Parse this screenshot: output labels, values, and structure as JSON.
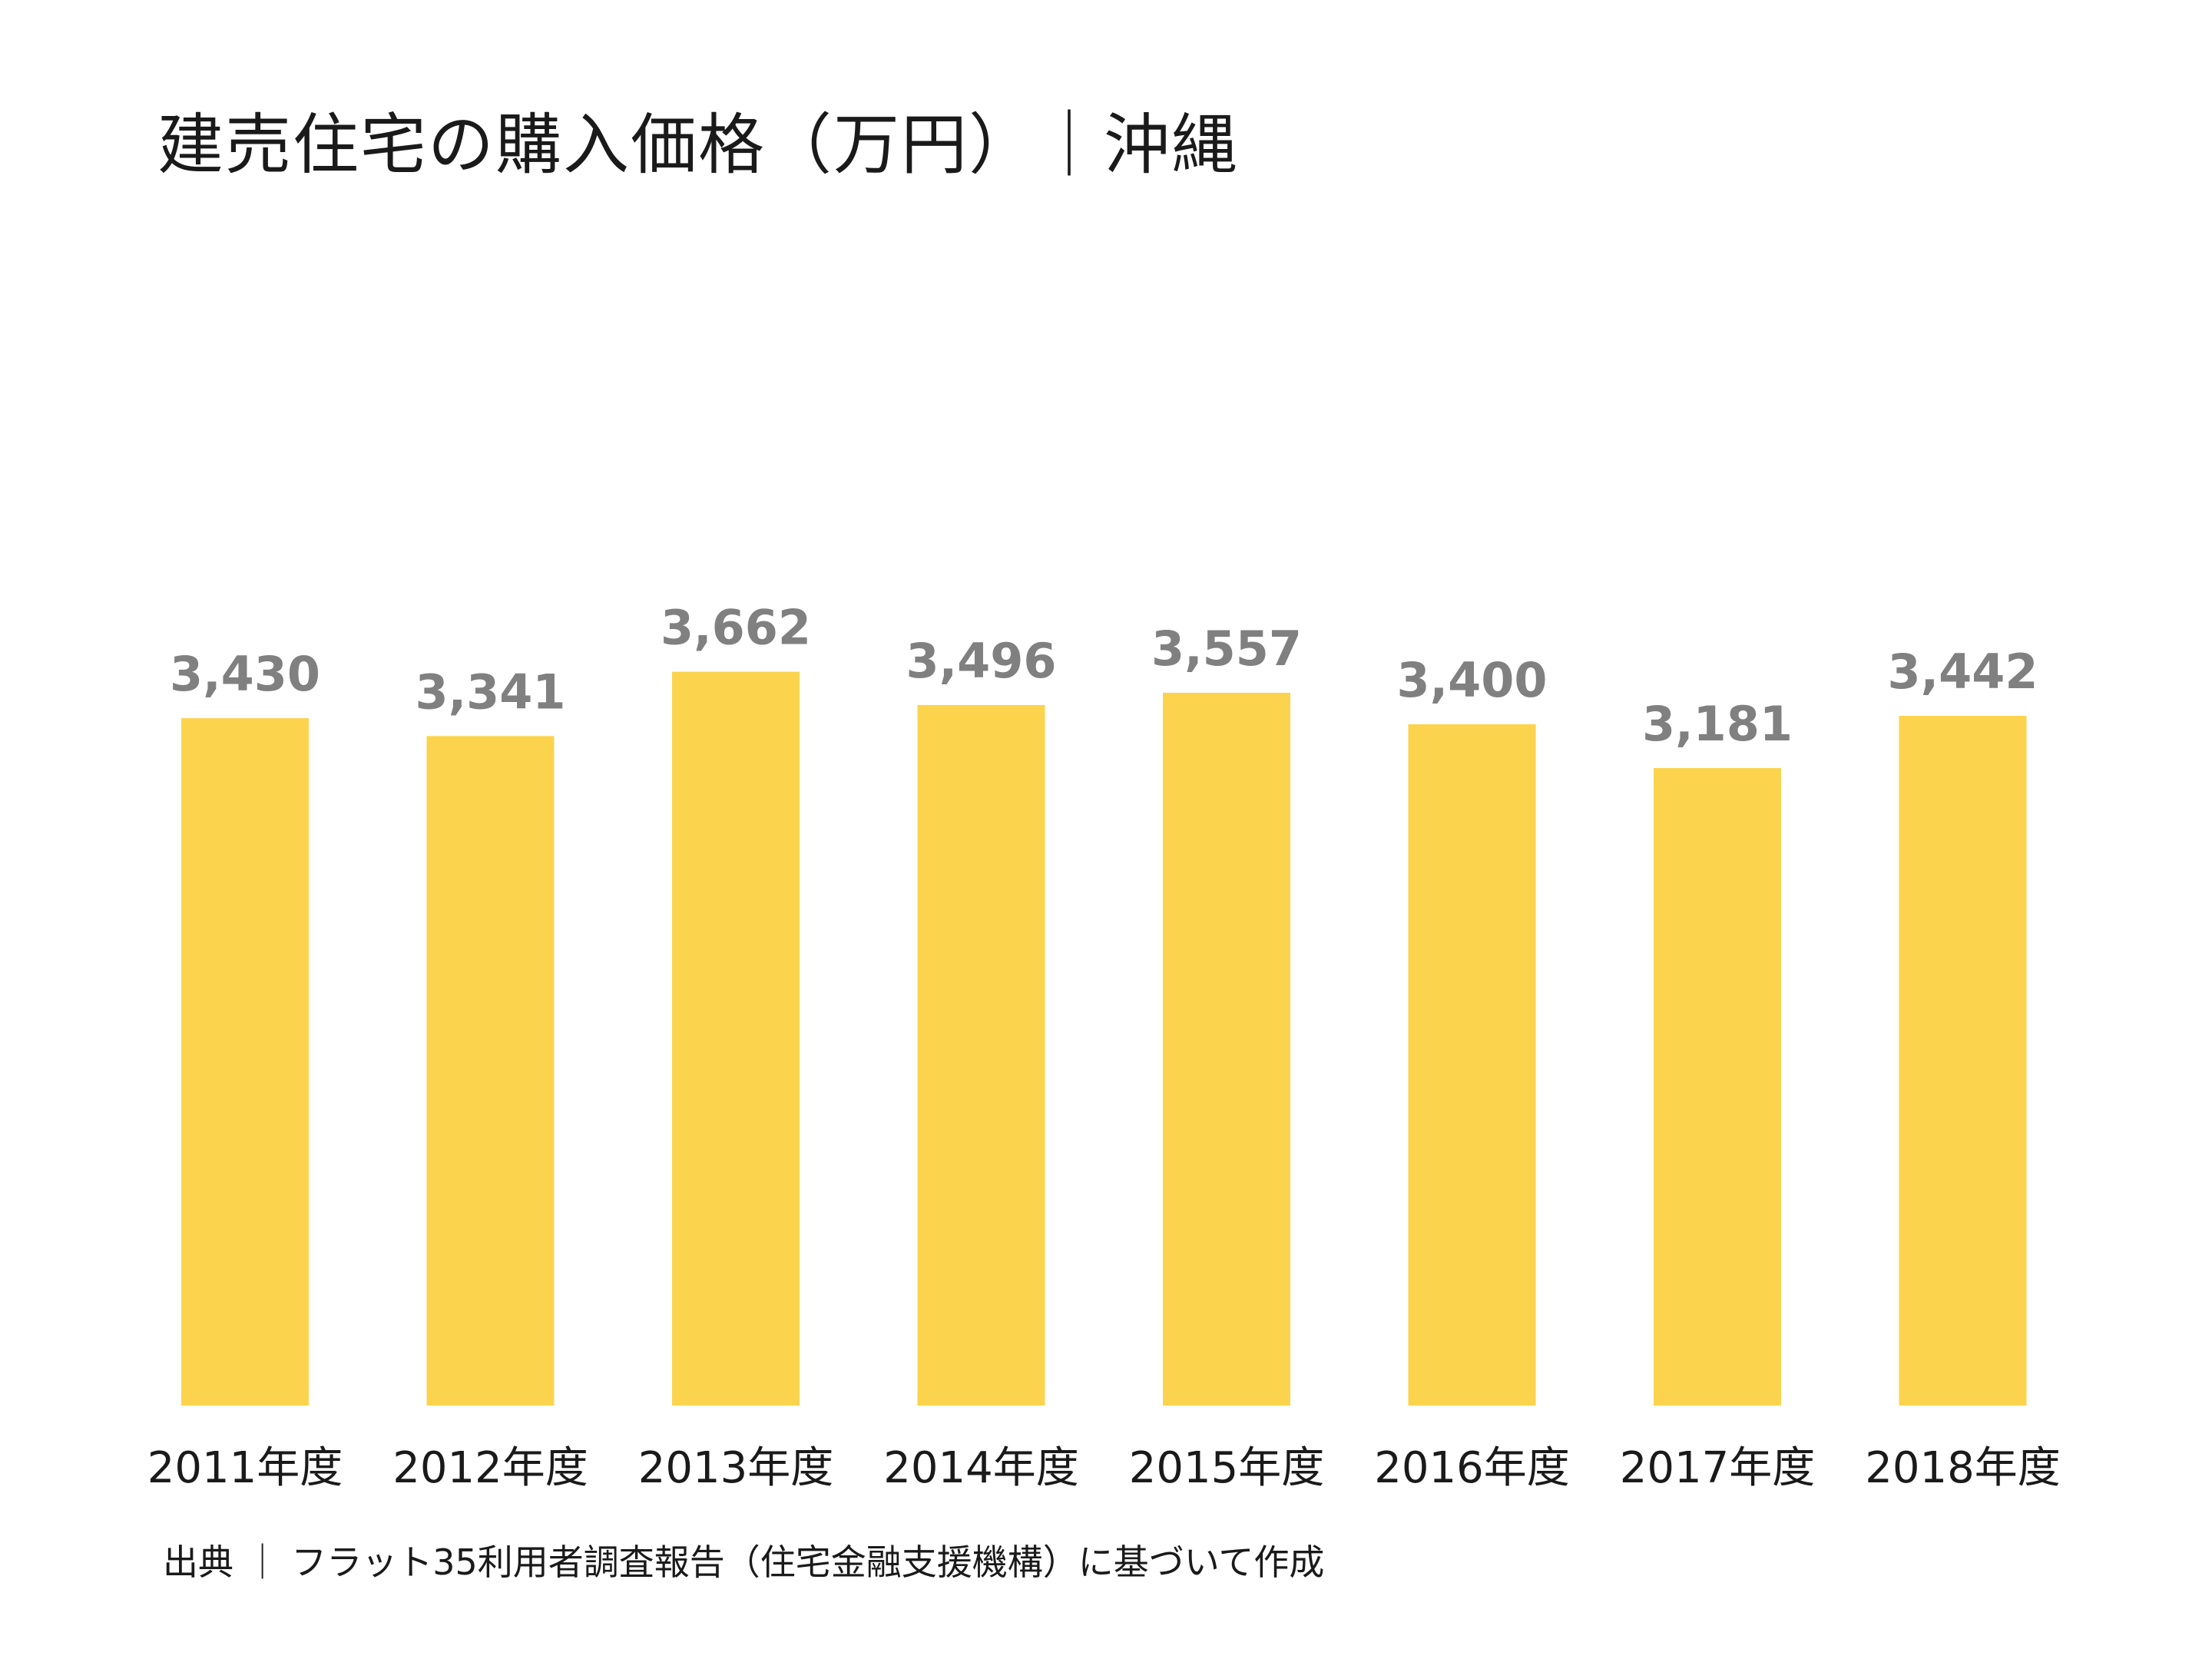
{
  "title": "建売住宅の購入価格（万円）｜沖縄",
  "source": "出典 ｜ フラット35利用者調査報告（住宅金融支援機構）に基づいて作成",
  "colors": {
    "bar": "#fcd34d",
    "value_label": "#808080",
    "category_label": "#1a1a1a"
  },
  "chart_data": {
    "type": "bar",
    "categories": [
      "2011年度",
      "2012年度",
      "2013年度",
      "2014年度",
      "2015年度",
      "2016年度",
      "2017年度",
      "2018年度"
    ],
    "values": [
      3430,
      3341,
      3662,
      3496,
      3557,
      3400,
      3181,
      3442
    ],
    "value_labels": [
      "3,430",
      "3,341",
      "3,662",
      "3,496",
      "3,557",
      "3,400",
      "3,181",
      "3,442"
    ],
    "ylim": [
      0,
      4000
    ],
    "grid": false,
    "legend": "none"
  }
}
